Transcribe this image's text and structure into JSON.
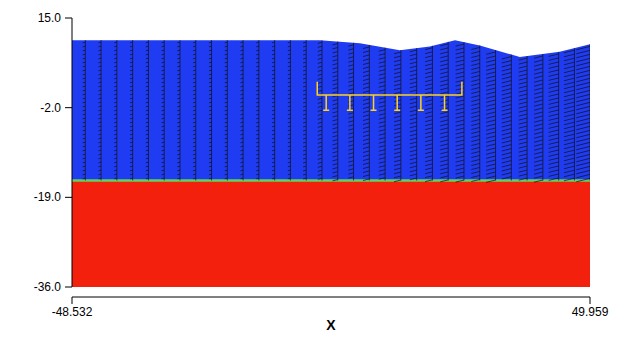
{
  "chart_data": {
    "type": "field",
    "xlabel": "X",
    "xlim": [
      -48.532,
      49.959
    ],
    "ylim": [
      -36,
      15
    ],
    "xticks": [
      -48.532,
      49.959
    ],
    "yticks": [
      {
        "value": 15,
        "label": "15.0"
      },
      {
        "value": -2,
        "label": "-2.0"
      },
      {
        "value": -19,
        "label": "-19.0"
      },
      {
        "value": -36,
        "label": "-36.0"
      }
    ],
    "series": [
      {
        "type": "area",
        "color": "#1f3cf2",
        "x": [
          -48.532,
          -1.4,
          6.2,
          13.8,
          19.5,
          24.3,
          29.0,
          36.6,
          44.2,
          49.959
        ],
        "values": [
          10.8,
          10.8,
          10.2,
          8.9,
          9.6,
          10.8,
          9.8,
          7.6,
          8.6,
          10.0
        ]
      },
      {
        "type": "area",
        "color": "#f2200c",
        "x": [
          -48.532,
          49.959
        ],
        "values": [
          -15.8,
          -15.8
        ]
      }
    ],
    "vectors": {
      "x": [
        -46,
        -43,
        -40,
        -37,
        -34,
        -31,
        -28,
        -25,
        -22,
        -19,
        -16,
        -13,
        -10,
        -7,
        -4,
        -1,
        2,
        5,
        8,
        11,
        14,
        17,
        20,
        23,
        26,
        29,
        32,
        35,
        38,
        41,
        44,
        47,
        49.959
      ],
      "u": [
        0.5,
        0.5,
        0.5,
        0.5,
        0.5,
        0.5,
        0.5,
        0.5,
        0.5,
        0.5,
        0.5,
        0.5,
        0.5,
        0.5,
        0.6,
        0.8,
        1.0,
        1.0,
        1.2,
        1.2,
        1.3,
        1.3,
        1.4,
        1.5,
        1.6,
        1.6,
        1.8,
        1.8,
        1.6,
        1.7,
        1.9,
        2.0,
        2.6
      ]
    },
    "structure": {
      "x": [
        -1.9,
        25.6
      ],
      "deck": 0.4,
      "rail": 2.9,
      "girders": [
        -0.2,
        4.3,
        8.8,
        13.3,
        17.8,
        22.3
      ],
      "girder_bottom": -2.5,
      "color": "#ffd21e"
    }
  }
}
